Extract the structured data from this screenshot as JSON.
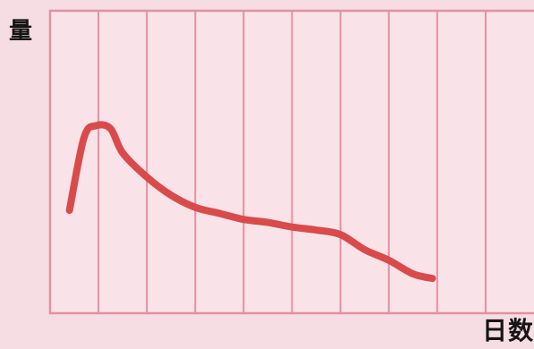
{
  "chart_data": {
    "type": "line",
    "title": "",
    "xlabel": "日数",
    "ylabel": "量",
    "grid": true,
    "legend": "none",
    "xlim": [
      0,
      10
    ],
    "ylim": [
      0,
      100
    ],
    "gridlines_x": [
      1,
      2,
      3,
      4,
      5,
      6,
      7,
      8,
      9
    ],
    "series": [
      {
        "color": "#d94a4a",
        "points": [
          {
            "x": 0.4,
            "y": 34
          },
          {
            "x": 0.7,
            "y": 58
          },
          {
            "x": 0.95,
            "y": 62
          },
          {
            "x": 1.25,
            "y": 61
          },
          {
            "x": 1.5,
            "y": 53
          },
          {
            "x": 2.0,
            "y": 45
          },
          {
            "x": 2.5,
            "y": 39
          },
          {
            "x": 3.0,
            "y": 35
          },
          {
            "x": 3.5,
            "y": 33
          },
          {
            "x": 4.0,
            "y": 31
          },
          {
            "x": 4.5,
            "y": 30
          },
          {
            "x": 5.0,
            "y": 28.5
          },
          {
            "x": 5.5,
            "y": 27.5
          },
          {
            "x": 6.0,
            "y": 26
          },
          {
            "x": 6.5,
            "y": 21
          },
          {
            "x": 7.0,
            "y": 17.5
          },
          {
            "x": 7.5,
            "y": 13
          },
          {
            "x": 7.9,
            "y": 11.5
          }
        ]
      }
    ]
  },
  "colors": {
    "background": "#f6dde3",
    "grid": "#e58fa0",
    "line": "#d94a4a"
  }
}
